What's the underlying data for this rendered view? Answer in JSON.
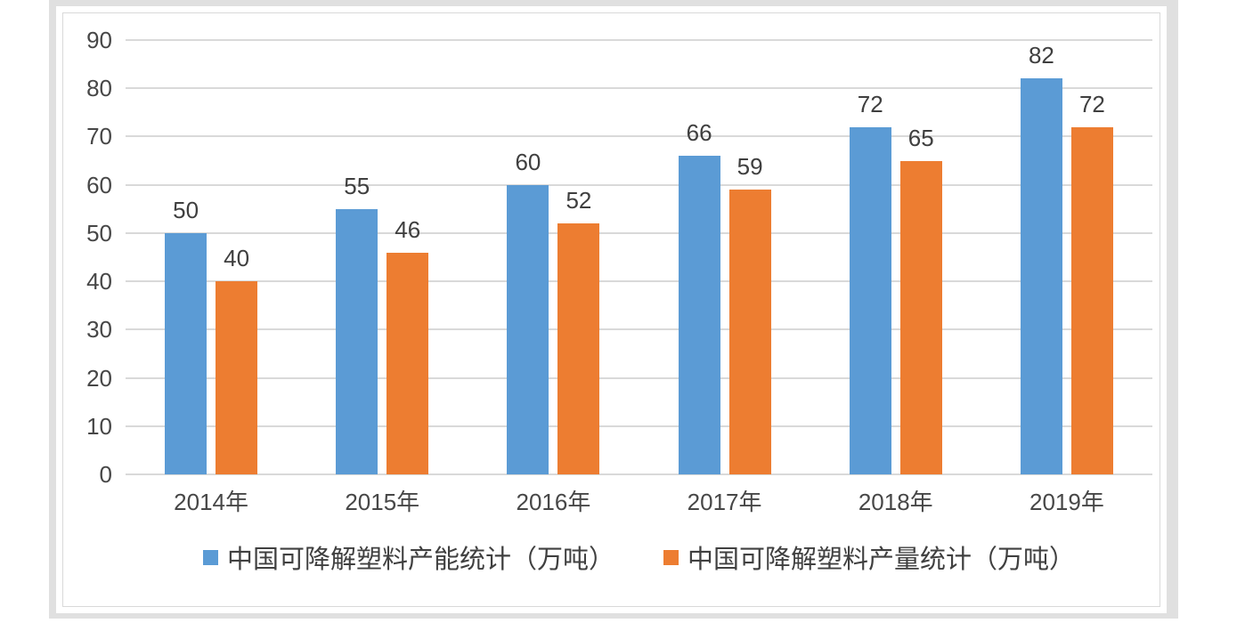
{
  "chart_data": {
    "type": "bar",
    "title": "",
    "categories": [
      "2014年",
      "2015年",
      "2016年",
      "2017年",
      "2018年",
      "2019年"
    ],
    "series": [
      {
        "name": "中国可降解塑料产能统计（万吨）",
        "color": "#5B9BD5",
        "values": [
          50,
          55,
          60,
          66,
          72,
          82
        ]
      },
      {
        "name": "中国可降解塑料产量统计（万吨）",
        "color": "#ED7D31",
        "values": [
          40,
          46,
          52,
          59,
          65,
          72
        ]
      }
    ],
    "ylim": [
      0,
      90
    ],
    "yticks": [
      0,
      10,
      20,
      30,
      40,
      50,
      60,
      70,
      80,
      90
    ],
    "grid": true,
    "legend_position": "bottom",
    "data_labels": true
  },
  "colors": {
    "series_capacity": "#5B9BD5",
    "series_output": "#ED7D31",
    "gridline": "#D9D9D9",
    "axis_text": "#474747",
    "data_label_text": "#3F3F3F",
    "frame_band": "#E0E0E0",
    "panel_border": "#D9D9D9",
    "background": "#FFFFFF"
  }
}
